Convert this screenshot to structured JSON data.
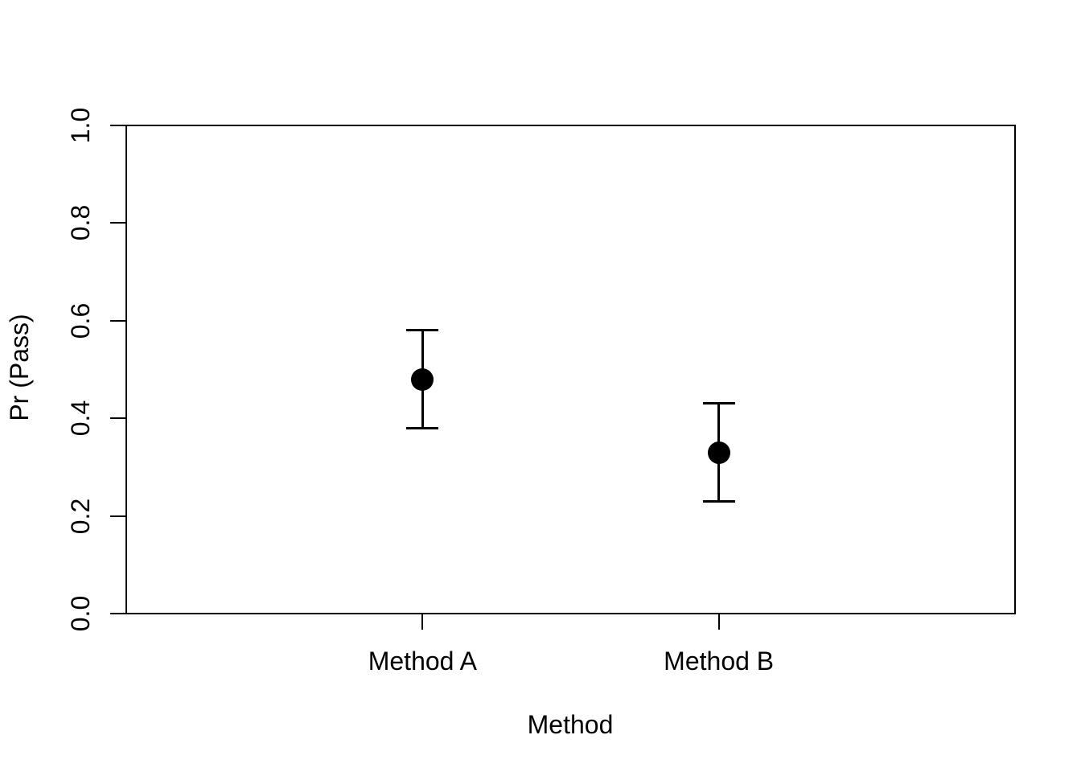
{
  "chart_data": {
    "type": "scatter",
    "subtype": "point-estimates-with-error-bars",
    "title": "",
    "xlabel": "Method",
    "ylabel": "Pr (Pass)",
    "categories": [
      "Method A",
      "Method B"
    ],
    "series": [
      {
        "name": "Pr (Pass)",
        "values": [
          0.48,
          0.33
        ],
        "ci_lower": [
          0.38,
          0.23
        ],
        "ci_upper": [
          0.58,
          0.43
        ]
      }
    ],
    "ylim": [
      0.0,
      1.0
    ],
    "yticks": [
      0.0,
      0.2,
      0.4,
      0.6,
      0.8,
      1.0
    ],
    "ytick_labels": [
      "0.0",
      "0.2",
      "0.4",
      "0.6",
      "0.8",
      "1.0"
    ],
    "y_tick_label_rotation_deg": 90,
    "grid": false,
    "legend": "none",
    "marker": {
      "shape": "filled-circle",
      "color": "#000000"
    },
    "error_bar_color": "#000000",
    "axis_color": "#000000",
    "background_color": "#ffffff"
  }
}
